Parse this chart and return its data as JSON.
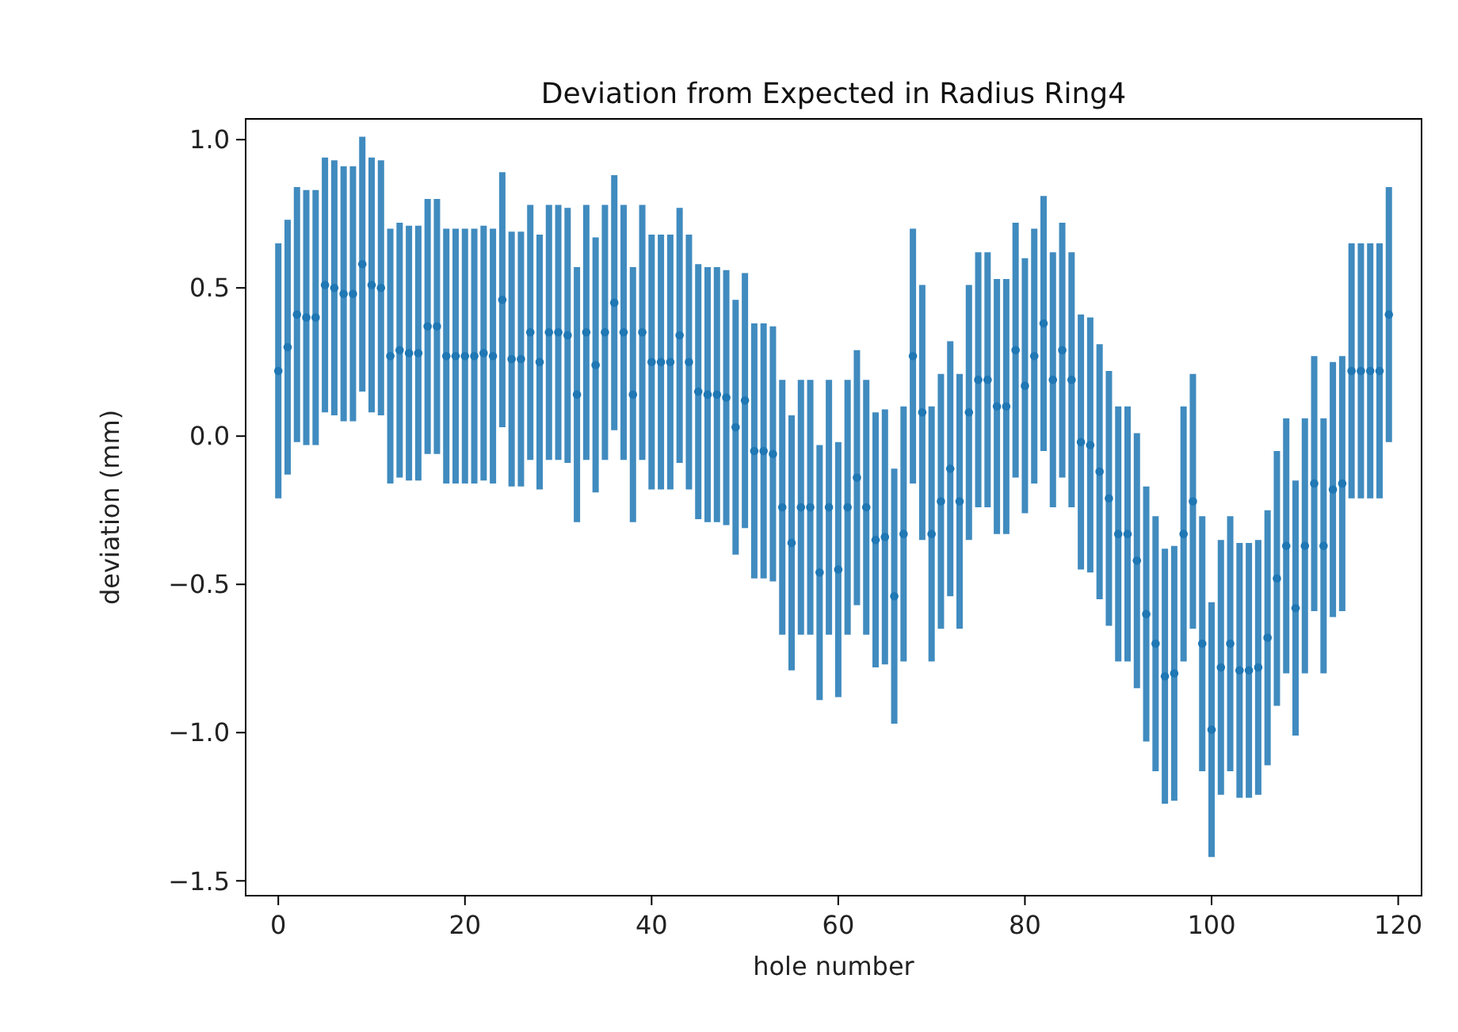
{
  "chart_data": {
    "type": "scatter",
    "title": "Deviation from Expected in Radius Ring4",
    "xlabel": "hole number",
    "ylabel": "deviation (mm)",
    "x": [
      0,
      1,
      2,
      3,
      4,
      5,
      6,
      7,
      8,
      9,
      10,
      11,
      12,
      13,
      14,
      15,
      16,
      17,
      18,
      19,
      20,
      21,
      22,
      23,
      24,
      25,
      26,
      27,
      28,
      29,
      30,
      31,
      32,
      33,
      34,
      35,
      36,
      37,
      38,
      39,
      40,
      41,
      42,
      43,
      44,
      45,
      46,
      47,
      48,
      49,
      50,
      51,
      52,
      53,
      54,
      55,
      56,
      57,
      58,
      59,
      60,
      61,
      62,
      63,
      64,
      65,
      66,
      67,
      68,
      69,
      70,
      71,
      72,
      73,
      74,
      75,
      76,
      77,
      78,
      79,
      80,
      81,
      82,
      83,
      84,
      85,
      86,
      87,
      88,
      89,
      90,
      91,
      92,
      93,
      94,
      95,
      96,
      97,
      98,
      99,
      100,
      101,
      102,
      103,
      104,
      105,
      106,
      107,
      108,
      109,
      110,
      111,
      112,
      113,
      114,
      115,
      116,
      117,
      118,
      119
    ],
    "series": [
      {
        "color": "#1f77b4",
        "values": [
          0.22,
          0.3,
          0.41,
          0.4,
          0.4,
          0.51,
          0.5,
          0.48,
          0.48,
          0.58,
          0.51,
          0.5,
          0.27,
          0.29,
          0.28,
          0.28,
          0.37,
          0.37,
          0.27,
          0.27,
          0.27,
          0.27,
          0.28,
          0.27,
          0.46,
          0.26,
          0.26,
          0.35,
          0.25,
          0.35,
          0.35,
          0.34,
          0.14,
          0.35,
          0.24,
          0.35,
          0.45,
          0.35,
          0.14,
          0.35,
          0.25,
          0.25,
          0.25,
          0.34,
          0.25,
          0.15,
          0.14,
          0.14,
          0.13,
          0.03,
          0.12,
          -0.05,
          -0.05,
          -0.06,
          -0.24,
          -0.36,
          -0.24,
          -0.24,
          -0.46,
          -0.24,
          -0.45,
          -0.24,
          -0.14,
          -0.24,
          -0.35,
          -0.34,
          -0.54,
          -0.33,
          0.27,
          0.08,
          -0.33,
          -0.22,
          -0.11,
          -0.22,
          0.08,
          0.19,
          0.19,
          0.1,
          0.1,
          0.29,
          0.17,
          0.27,
          0.38,
          0.19,
          0.29,
          0.19,
          -0.02,
          -0.03,
          -0.12,
          -0.21,
          -0.33,
          -0.33,
          -0.42,
          -0.6,
          -0.7,
          -0.81,
          -0.8,
          -0.33,
          -0.22,
          -0.7,
          -0.99,
          -0.78,
          -0.7,
          -0.79,
          -0.79,
          -0.78,
          -0.68,
          -0.48,
          -0.37,
          -0.58,
          -0.37,
          -0.16,
          -0.37,
          -0.18,
          -0.16,
          0.22,
          0.22,
          0.22,
          0.22,
          0.41
        ],
        "errors": [
          0.43,
          0.43,
          0.43,
          0.43,
          0.43,
          0.43,
          0.43,
          0.43,
          0.43,
          0.43,
          0.43,
          0.43,
          0.43,
          0.43,
          0.43,
          0.43,
          0.43,
          0.43,
          0.43,
          0.43,
          0.43,
          0.43,
          0.43,
          0.43,
          0.43,
          0.43,
          0.43,
          0.43,
          0.43,
          0.43,
          0.43,
          0.43,
          0.43,
          0.43,
          0.43,
          0.43,
          0.43,
          0.43,
          0.43,
          0.43,
          0.43,
          0.43,
          0.43,
          0.43,
          0.43,
          0.43,
          0.43,
          0.43,
          0.43,
          0.43,
          0.43,
          0.43,
          0.43,
          0.43,
          0.43,
          0.43,
          0.43,
          0.43,
          0.43,
          0.43,
          0.43,
          0.43,
          0.43,
          0.43,
          0.43,
          0.43,
          0.43,
          0.43,
          0.43,
          0.43,
          0.43,
          0.43,
          0.43,
          0.43,
          0.43,
          0.43,
          0.43,
          0.43,
          0.43,
          0.43,
          0.43,
          0.43,
          0.43,
          0.43,
          0.43,
          0.43,
          0.43,
          0.43,
          0.43,
          0.43,
          0.43,
          0.43,
          0.43,
          0.43,
          0.43,
          0.43,
          0.43,
          0.43,
          0.43,
          0.43,
          0.43,
          0.43,
          0.43,
          0.43,
          0.43,
          0.43,
          0.43,
          0.43,
          0.43,
          0.43,
          0.43,
          0.43,
          0.43,
          0.43,
          0.43,
          0.43,
          0.43,
          0.43,
          0.43,
          0.43
        ]
      }
    ],
    "xlim": [
      -3.5,
      122.5
    ],
    "xticks": [
      0,
      20,
      40,
      60,
      80,
      100,
      120
    ],
    "ylim": [
      -1.55,
      1.07
    ],
    "yticks": [
      {
        "value": -1.5,
        "label": "−1.5"
      },
      {
        "value": -1,
        "label": "−1.0"
      },
      {
        "value": -0.5,
        "label": "−0.5"
      },
      {
        "value": 0,
        "label": "0.0"
      },
      {
        "value": 0.5,
        "label": "0.5"
      },
      {
        "value": 1,
        "label": "1.0"
      }
    ],
    "marker": "circle",
    "grid": false
  }
}
